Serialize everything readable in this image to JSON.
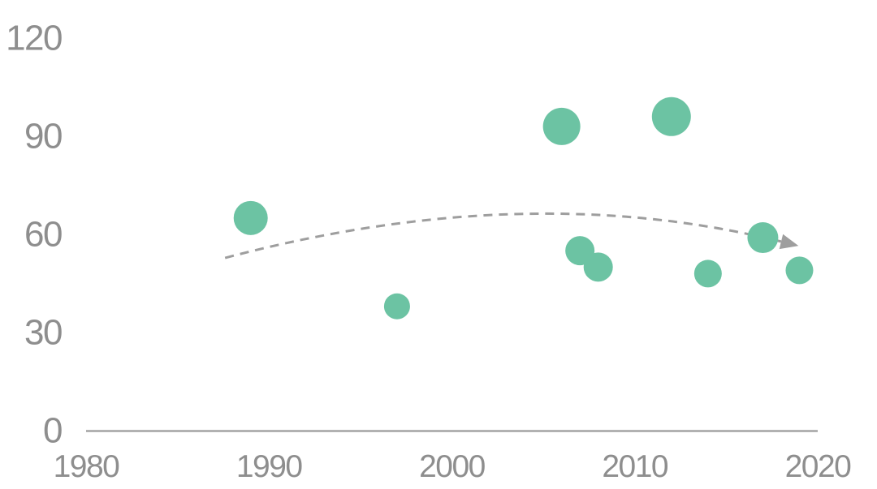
{
  "chart_data": {
    "type": "scatter",
    "title": "",
    "xlabel": "",
    "ylabel": "",
    "x_ticks": [
      "1980",
      "1990",
      "2000",
      "2010",
      "2020"
    ],
    "x_tick_values": [
      1980,
      1990,
      2000,
      2010,
      2020
    ],
    "y_ticks": [
      "0",
      "30",
      "60",
      "90",
      "120"
    ],
    "y_tick_values": [
      0,
      30,
      60,
      90,
      120
    ],
    "xlim": [
      1980,
      2020
    ],
    "ylim": [
      0,
      120
    ],
    "grid": false,
    "legend": false,
    "series": [
      {
        "name": "bubbles",
        "points": [
          {
            "x": 1989,
            "y": 65,
            "r": 21
          },
          {
            "x": 1997,
            "y": 38,
            "r": 16
          },
          {
            "x": 2006,
            "y": 93,
            "r": 23
          },
          {
            "x": 2007,
            "y": 55,
            "r": 18
          },
          {
            "x": 2008,
            "y": 50,
            "r": 18
          },
          {
            "x": 2012,
            "y": 96,
            "r": 24
          },
          {
            "x": 2014,
            "y": 48,
            "r": 17
          },
          {
            "x": 2017,
            "y": 59,
            "r": 19
          },
          {
            "x": 2019,
            "y": 49,
            "r": 17
          }
        ]
      }
    ],
    "trend": {
      "style": "dashed-arrow",
      "start": {
        "x": 1987.6,
        "y": 52.8
      },
      "mid": {
        "x": 2003.4,
        "y": 66.2
      },
      "end": {
        "x": 2018.0,
        "y": 57.8
      }
    },
    "colors": {
      "bubble": "#6cc3a3",
      "trend": "#9e9e9e",
      "axis": "#a4a4a4",
      "tick_text": "#8e8e8e",
      "background": "#ffffff"
    }
  }
}
